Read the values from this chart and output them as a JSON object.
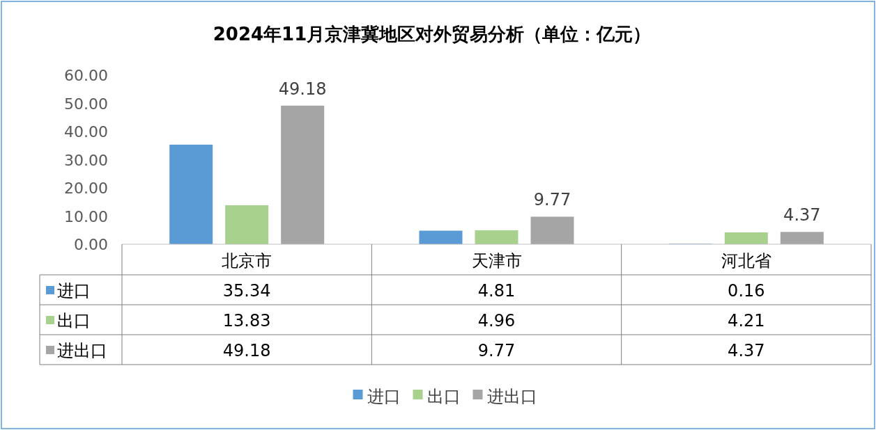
{
  "chart_data": {
    "type": "bar",
    "title": "2024年11月京津冀地区对外贸易分析（单位：亿元）",
    "categories": [
      "北京市",
      "天津市",
      "河北省"
    ],
    "series": [
      {
        "name": "进口",
        "color": "#5b9bd5",
        "values": [
          35.34,
          4.81,
          0.16
        ]
      },
      {
        "name": "出口",
        "color": "#a9d18e",
        "values": [
          13.83,
          4.96,
          4.21
        ]
      },
      {
        "name": "进出口",
        "color": "#a5a5a5",
        "values": [
          49.18,
          9.77,
          4.37
        ]
      }
    ],
    "annotations": [
      "49.18",
      "9.77",
      "4.37"
    ],
    "ylim": [
      0,
      60
    ],
    "yticks": [
      {
        "value": 0,
        "label": "0.00"
      },
      {
        "value": 10,
        "label": "10.00"
      },
      {
        "value": 20,
        "label": "20.00"
      },
      {
        "value": 30,
        "label": "30.00"
      },
      {
        "value": 40,
        "label": "40.00"
      },
      {
        "value": 50,
        "label": "50.00"
      },
      {
        "value": 60,
        "label": "60.00"
      }
    ],
    "data_labels": true,
    "legend": "bottom"
  }
}
